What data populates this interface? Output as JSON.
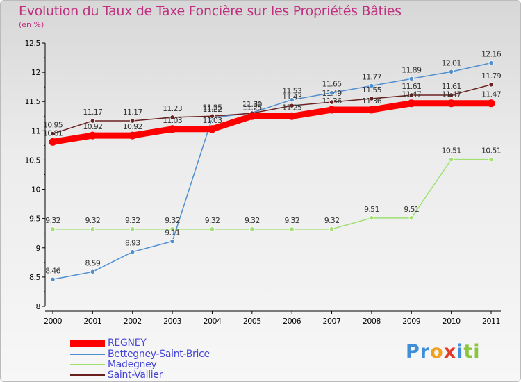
{
  "title": "Evolution du Taux de Taxe Foncière sur les Propriétés Bâties",
  "unit": "(en %)",
  "logo": "Proxiti",
  "colors": {
    "REGNEY": "#ff0000",
    "Bettegney-Saint-Brice": "#4f8fd0",
    "Madegney": "#9fe070",
    "Saint-Vallier": "#6b2020"
  },
  "chart_data": {
    "type": "line",
    "title": "Evolution du Taux de Taxe Foncière sur les Propriétés Bâties",
    "ylabel": "(en %)",
    "xlabel": "",
    "ylim": [
      8,
      12.5
    ],
    "yticks": [
      "8",
      "8.5",
      "9",
      "9.5",
      "10",
      "10.5",
      "11",
      "11.5",
      "12",
      "12.5"
    ],
    "categories": [
      "2000",
      "2001",
      "2002",
      "2003",
      "2004",
      "2005",
      "2006",
      "2007",
      "2008",
      "2009",
      "2010",
      "2011"
    ],
    "series": [
      {
        "name": "REGNEY",
        "values": [
          10.81,
          10.92,
          10.92,
          11.03,
          11.03,
          11.25,
          11.25,
          11.36,
          11.36,
          11.47,
          11.47,
          11.47
        ],
        "labels": [
          "10.81",
          "10.92",
          "10.92",
          "11.03",
          "11.03",
          "11.25",
          "11.25",
          "11.36",
          "11.36",
          "11.47",
          "11.47",
          "11.47"
        ]
      },
      {
        "name": "Bettegney-Saint-Brice",
        "values": [
          8.46,
          8.59,
          8.93,
          9.11,
          11.22,
          11.31,
          11.53,
          11.65,
          11.77,
          11.89,
          12.01,
          12.16
        ],
        "labels": [
          "8.46",
          "8.59",
          "8.93",
          "9.11",
          "11.22",
          "11.31",
          "11.53",
          "11.65",
          "11.77",
          "11.89",
          "12.01",
          "12.16"
        ]
      },
      {
        "name": "Madegney",
        "values": [
          9.32,
          9.32,
          9.32,
          9.32,
          9.32,
          9.32,
          9.32,
          9.32,
          9.51,
          9.51,
          10.51,
          10.51
        ],
        "labels": [
          "9.32",
          "9.32",
          "9.32",
          "9.32",
          "9.32",
          "9.32",
          "9.32",
          "9.32",
          "9.51",
          "9.51",
          "10.51",
          "10.51"
        ]
      },
      {
        "name": "Saint-Vallier",
        "values": [
          10.95,
          11.17,
          11.17,
          11.23,
          11.25,
          11.3,
          11.43,
          11.49,
          11.55,
          11.61,
          11.61,
          11.79
        ],
        "labels": [
          "10.95",
          "11.17",
          "11.17",
          "11.23",
          "11.25",
          "11.30",
          "11.43",
          "11.49",
          "11.55",
          "11.61",
          "11.61",
          "11.79"
        ]
      }
    ]
  }
}
